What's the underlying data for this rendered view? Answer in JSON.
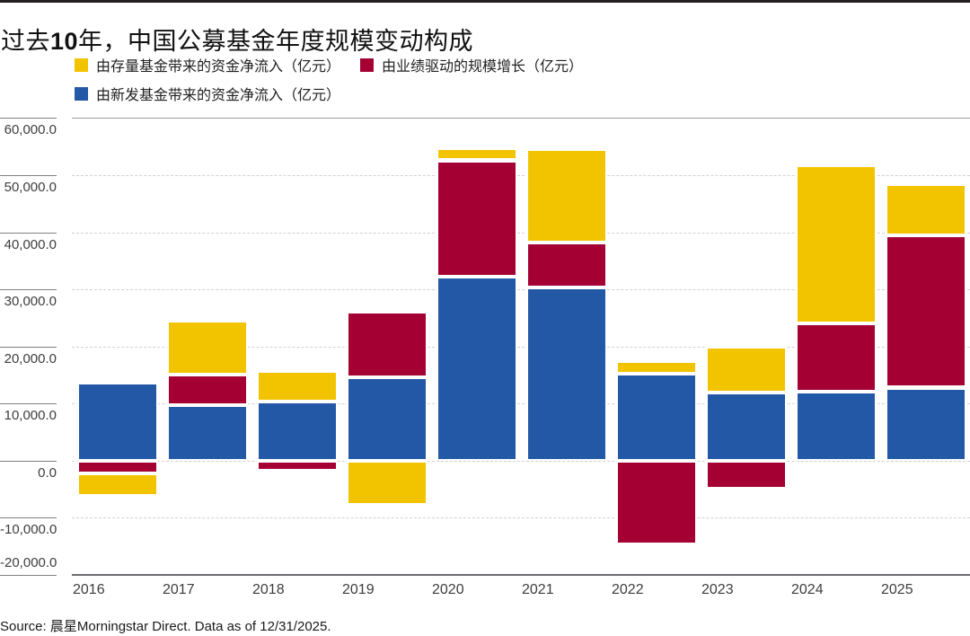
{
  "page": {
    "title": {
      "prefix": "过去",
      "number": "10",
      "suffix": "年，中国公募基金年度规模变动构成"
    },
    "source": "Source: 晨星Morningstar Direct. Data as of 12/31/2025."
  },
  "legend": [
    {
      "key": "existing-funds",
      "label": "由存量基金带来的资金净流入（亿元）",
      "color": "#F2C400"
    },
    {
      "key": "performance",
      "label": "由业绩驱动的规模增长（亿元）",
      "color": "#A50034"
    },
    {
      "key": "new-funds",
      "label": "由新发基金带来的资金净流入（亿元）",
      "color": "#2358A7"
    }
  ],
  "chart_data": {
    "type": "bar",
    "stacked": true,
    "title": "过去10年，中国公募基金年度规模变动构成",
    "unit": "亿元",
    "categories": [
      "2016",
      "2017",
      "2018",
      "2019",
      "2020",
      "2021",
      "2022",
      "2023",
      "2024",
      "2025"
    ],
    "series": [
      {
        "key": "new-funds",
        "name": "由新发基金带来的资金净流入（亿元）",
        "color": "#2358A7",
        "values": [
          13600,
          9700,
          10400,
          14600,
          32200,
          30300,
          15200,
          11900,
          12100,
          12800
        ]
      },
      {
        "key": "performance",
        "name": "由业绩驱动的规模增长（亿元）",
        "color": "#A50034",
        "values": [
          -2200,
          5400,
          -1800,
          11500,
          20400,
          7900,
          -14700,
          -4900,
          12000,
          26700
        ]
      },
      {
        "key": "existing-funds",
        "name": "由存量基金带来的资金净流入（亿元）",
        "color": "#F2C400",
        "values": [
          -3900,
          9500,
          5400,
          -7700,
          2100,
          16400,
          2200,
          8000,
          27600,
          8900
        ]
      }
    ],
    "ylim": [
      -20000,
      60000
    ],
    "ytick_step": 10000,
    "ytick_labels": [
      "60,000.0",
      "50,000.0",
      "40,000.0",
      "30,000.0",
      "20,000.0",
      "10,000.0",
      "0.0",
      "-10,000.0",
      "-20,000.0"
    ],
    "grid": "horizontal-dashed",
    "legend_position": "top"
  }
}
